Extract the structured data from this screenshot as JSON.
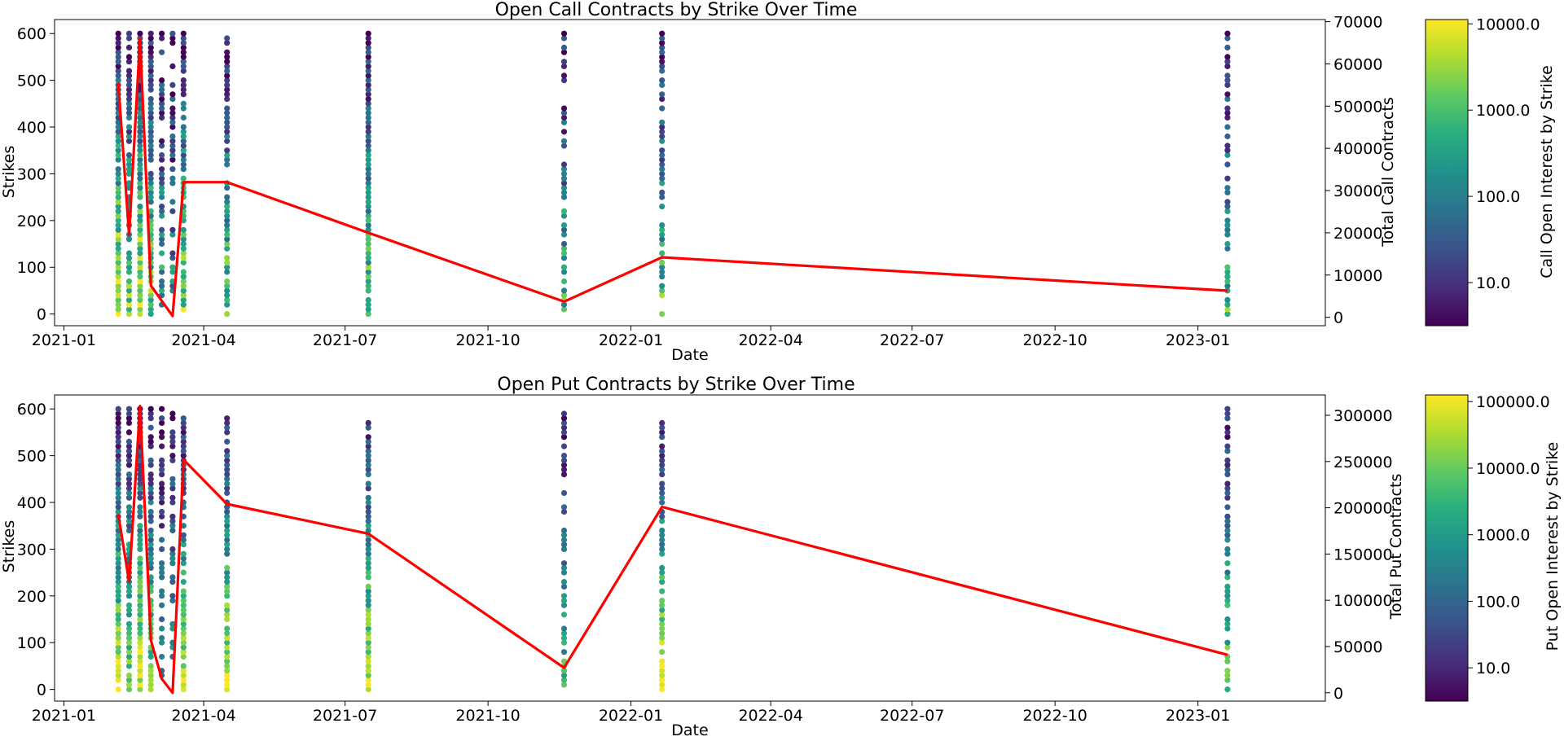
{
  "chart_data": [
    {
      "type": "scatter",
      "title": "Open Call Contracts by Strike Over Time",
      "xlabel": "Date",
      "ylabel": "Strikes",
      "y2label": "Total Call Contracts",
      "colorbar_label": "Call Open Interest by Strike",
      "x_tick_labels": [
        "2021-01",
        "2021-04",
        "2021-07",
        "2021-10",
        "2022-01",
        "2022-04",
        "2022-07",
        "2022-10",
        "2023-01"
      ],
      "x_range": [
        "2020-12-26",
        "2023-03-24"
      ],
      "y_ticks": [
        0,
        100,
        200,
        300,
        400,
        500,
        600
      ],
      "y_range": [
        -25,
        630
      ],
      "y2_ticks": [
        0,
        10000,
        20000,
        30000,
        40000,
        50000,
        60000,
        70000
      ],
      "y2_range": [
        -2000,
        70500
      ],
      "colorbar_ticks": [
        "10.0",
        "100.0",
        "1000.0",
        "10000.0"
      ],
      "colorbar_log_range": [
        0.5,
        4.05
      ],
      "colormap": "viridis",
      "log_color_scale": true,
      "expirations": [
        "2021-02-05",
        "2021-02-12",
        "2021-02-19",
        "2021-02-26",
        "2021-03-05",
        "2021-03-12",
        "2021-03-19",
        "2021-04-16",
        "2021-07-16",
        "2021-11-19",
        "2022-01-21",
        "2023-01-20"
      ],
      "strike_ranges": [
        [
          0,
          600
        ],
        [
          0,
          600
        ],
        [
          0,
          600
        ],
        [
          0,
          600
        ],
        [
          20,
          600
        ],
        [
          50,
          600
        ],
        [
          10,
          600
        ],
        [
          0,
          600
        ],
        [
          0,
          600
        ],
        [
          10,
          600
        ],
        [
          0,
          600
        ],
        [
          0,
          600
        ]
      ],
      "strike_step": 10,
      "points_per_expiration": [
        60,
        48,
        60,
        56,
        38,
        32,
        52,
        50,
        60,
        40,
        44,
        42
      ],
      "max_log_open_interest": [
        4.0,
        3.4,
        4.0,
        3.3,
        2.6,
        2.1,
        3.4,
        3.2,
        3.3,
        2.8,
        3.0,
        2.9
      ],
      "line_series": {
        "name": "Total Call Contracts",
        "x": [
          "2021-02-05",
          "2021-02-12",
          "2021-02-19",
          "2021-02-26",
          "2021-03-12",
          "2021-03-19",
          "2021-04-16",
          "2021-07-16",
          "2021-11-19",
          "2022-01-21",
          "2023-01-20"
        ],
        "y": [
          55500,
          19500,
          66000,
          7500,
          300,
          32000,
          32000,
          20000,
          3700,
          14200,
          6300
        ]
      },
      "line_color": "#ff0000"
    },
    {
      "type": "scatter",
      "title": "Open Put Contracts by Strike Over Time",
      "xlabel": "Date",
      "ylabel": "Strikes",
      "y2label": "Total Put Contracts",
      "colorbar_label": "Put Open Interest by Strike",
      "x_tick_labels": [
        "2021-01",
        "2021-04",
        "2021-07",
        "2021-10",
        "2022-01",
        "2022-04",
        "2022-07",
        "2022-10",
        "2023-01"
      ],
      "x_range": [
        "2020-12-26",
        "2023-03-24"
      ],
      "y_ticks": [
        0,
        100,
        200,
        300,
        400,
        500,
        600
      ],
      "y_range": [
        -25,
        630
      ],
      "y2_ticks": [
        0,
        50000,
        100000,
        150000,
        200000,
        250000,
        300000
      ],
      "y2_range": [
        -9000,
        322000
      ],
      "colorbar_ticks": [
        "10.0",
        "100.0",
        "1000.0",
        "10000.0",
        "100000.0"
      ],
      "colorbar_log_range": [
        0.5,
        5.1
      ],
      "colormap": "viridis",
      "log_color_scale": true,
      "expirations": [
        "2021-02-05",
        "2021-02-12",
        "2021-02-19",
        "2021-02-26",
        "2021-03-05",
        "2021-03-12",
        "2021-03-19",
        "2021-04-16",
        "2021-07-16",
        "2021-11-19",
        "2022-01-21",
        "2023-01-20"
      ],
      "strike_ranges": [
        [
          0,
          600
        ],
        [
          0,
          600
        ],
        [
          0,
          600
        ],
        [
          0,
          600
        ],
        [
          20,
          600
        ],
        [
          0,
          600
        ],
        [
          0,
          600
        ],
        [
          0,
          600
        ],
        [
          0,
          570
        ],
        [
          0,
          600
        ],
        [
          0,
          570
        ],
        [
          0,
          600
        ]
      ],
      "strike_step": 10,
      "points_per_expiration": [
        60,
        52,
        58,
        50,
        34,
        30,
        50,
        52,
        54,
        40,
        48,
        44
      ],
      "max_log_open_interest": [
        4.8,
        4.2,
        5.0,
        4.2,
        2.9,
        3.2,
        4.5,
        5.0,
        4.8,
        3.6,
        5.0,
        4.0
      ],
      "line_series": {
        "name": "Total Put Contracts",
        "x": [
          "2021-02-05",
          "2021-02-12",
          "2021-02-19",
          "2021-02-26",
          "2021-03-05",
          "2021-03-12",
          "2021-03-19",
          "2021-04-16",
          "2021-07-16",
          "2021-11-19",
          "2022-01-21",
          "2023-01-20"
        ],
        "y": [
          193000,
          120000,
          310000,
          57000,
          15000,
          0,
          252000,
          204000,
          172000,
          27000,
          201000,
          41000
        ]
      },
      "line_color": "#ff0000"
    }
  ]
}
